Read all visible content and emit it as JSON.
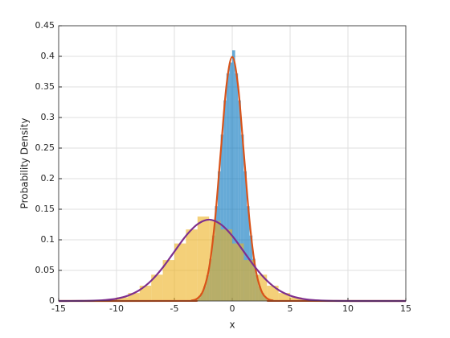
{
  "chart_data": {
    "type": "histogram",
    "xlabel": "x",
    "ylabel": "Probability Density",
    "xlim": [
      -15,
      15
    ],
    "xticks": [
      -15,
      -10,
      -5,
      0,
      5,
      10,
      15
    ],
    "ylim": [
      0,
      0.45
    ],
    "yticks": [
      0,
      0.05,
      0.1,
      0.15,
      0.2,
      0.25,
      0.3,
      0.35,
      0.4,
      0.45
    ],
    "grid": true,
    "histograms": [
      {
        "color": "#0072BD",
        "bins": [
          -3,
          -2.75,
          -2.5,
          -2.25,
          -2,
          -1.75,
          -1.5,
          -1.25,
          -1,
          -0.75,
          -0.5,
          -0.25,
          0,
          0.25,
          0.5,
          0.75,
          1,
          1.25,
          1.5,
          1.75,
          2,
          2.25,
          2.5,
          2.75,
          3
        ],
        "counts": [
          0.006,
          0.013,
          0.024,
          0.042,
          0.069,
          0.107,
          0.155,
          0.212,
          0.272,
          0.328,
          0.372,
          0.39,
          0.41,
          0.372,
          0.328,
          0.272,
          0.212,
          0.155,
          0.107,
          0.069,
          0.042,
          0.024,
          0.013,
          0.006
        ]
      },
      {
        "color": "#EDB120",
        "bins": [
          -12,
          -11,
          -10,
          -9,
          -8,
          -7,
          -6,
          -5,
          -4,
          -3,
          -2,
          -1,
          0,
          1,
          2,
          3,
          4,
          5,
          6,
          7,
          8
        ],
        "counts": [
          0.001,
          0.002,
          0.006,
          0.013,
          0.025,
          0.043,
          0.067,
          0.094,
          0.117,
          0.138,
          0.131,
          0.117,
          0.094,
          0.067,
          0.043,
          0.025,
          0.013,
          0.006,
          0.002,
          0.001
        ]
      }
    ],
    "series": [
      {
        "color": "#D95319",
        "x": [
          -15,
          -4,
          -3.5,
          -3,
          -2.5,
          -2,
          -1.5,
          -1,
          -0.5,
          0,
          0.5,
          1,
          1.5,
          2,
          2.5,
          3,
          3.5,
          4,
          15
        ],
        "values": [
          0,
          0.0001,
          0.0009,
          0.0044,
          0.0175,
          0.054,
          0.13,
          0.242,
          0.352,
          0.399,
          0.352,
          0.242,
          0.13,
          0.054,
          0.0175,
          0.0044,
          0.0009,
          0.0001,
          0
        ]
      },
      {
        "color": "#7E2F8E",
        "x": [
          -15,
          -14,
          -13,
          -12,
          -11,
          -10,
          -9,
          -8,
          -7,
          -6,
          -5,
          -4,
          -3,
          -2,
          -1,
          0,
          1,
          2,
          3,
          4,
          5,
          6,
          7,
          8,
          9,
          10,
          11,
          15
        ],
        "values": [
          1e-05,
          5e-05,
          0.0002,
          0.0005,
          0.0015,
          0.0038,
          0.0088,
          0.018,
          0.0332,
          0.0547,
          0.0807,
          0.1065,
          0.1255,
          0.133,
          0.1255,
          0.1065,
          0.0807,
          0.0547,
          0.0332,
          0.018,
          0.0088,
          0.0038,
          0.0015,
          0.0005,
          0.0002,
          5e-05,
          0,
          0
        ]
      }
    ]
  }
}
